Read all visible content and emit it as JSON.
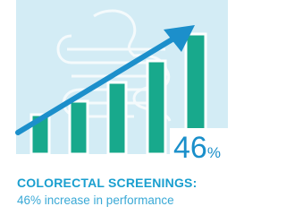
{
  "badge": {
    "number": "46",
    "unit": "%"
  },
  "caption": {
    "heading": "COLORECTAL SCREENINGS:",
    "text": "46% increase in performance"
  }
}
